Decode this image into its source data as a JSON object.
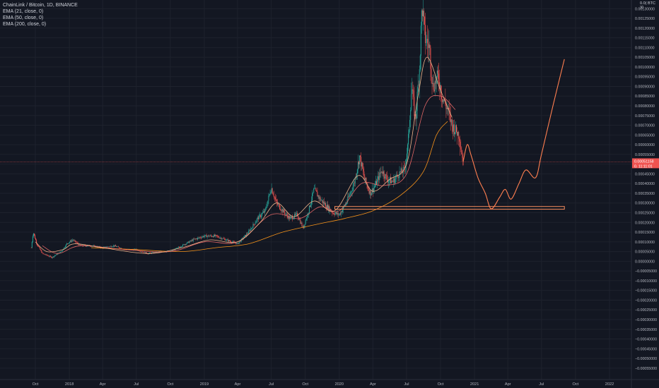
{
  "legend": {
    "title": "ChainLink / Bitcoin, 1D, BINANCE",
    "ema21": "EMA (21, close, 0)",
    "ema50": "EMA (50, close, 0)",
    "ema200": "EMA (200, close, 0)"
  },
  "price_scale": {
    "currency": "BTC",
    "top_truncated_label": "0.0( BTC )0",
    "last_price_label": "0.00051158",
    "countdown_label": "0.  11:11:01",
    "last_price_value": 0.00051158
  },
  "colors": {
    "background": "#131722",
    "grid": "#1e222d",
    "up_candle": "#26a69a",
    "down_candle": "#ef5350",
    "ema21": "#f0b38a",
    "ema50": "#e06666",
    "ema200": "#f7931a",
    "projection": "#ff7f50",
    "support_box": "#f58b5d",
    "price_tag": "#ef5350"
  },
  "chart_data": {
    "type": "candlestick",
    "symbol": "ChainLink / Bitcoin",
    "interval": "1D",
    "exchange": "BINANCE",
    "y_axis": {
      "range": [
        -0.000565,
        0.00133
      ],
      "step": 5e-05,
      "ticks": [
        "0.00130000",
        "0.00125000",
        "0.00120000",
        "0.00115000",
        "0.00110000",
        "0.00105000",
        "0.00100000",
        "0.00095000",
        "0.00090000",
        "0.00085000",
        "0.00080000",
        "0.00075000",
        "0.00070000",
        "0.00065000",
        "0.00060000",
        "0.00055000",
        "0.00050000",
        "0.00045000",
        "0.00040000",
        "0.00035000",
        "0.00030000",
        "0.00025000",
        "0.00020000",
        "0.00015000",
        "0.00010000",
        "0.00005000",
        "0.00000000",
        "−0.00005000",
        "−0.00010000",
        "−0.00015000",
        "−0.00020000",
        "−0.00025000",
        "−0.00030000",
        "−0.00035000",
        "−0.00040000",
        "−0.00045000",
        "−0.00050000",
        "−0.00055000"
      ]
    },
    "x_axis": {
      "ticks": [
        "Oct",
        "2018",
        "Apr",
        "Jul",
        "Oct",
        "2019",
        "Apr",
        "Jul",
        "Oct",
        "2020",
        "Apr",
        "Jul",
        "Oct",
        "2021",
        "Apr",
        "Jul",
        "Oct",
        "2022"
      ],
      "tick_dates": [
        "2017-10-01",
        "2018-01-01",
        "2018-04-01",
        "2018-07-01",
        "2018-10-01",
        "2019-01-01",
        "2019-04-01",
        "2019-07-01",
        "2019-10-01",
        "2020-01-01",
        "2020-04-01",
        "2020-07-01",
        "2020-10-01",
        "2021-01-01",
        "2021-04-01",
        "2021-07-01",
        "2021-10-01",
        "2022-01-01"
      ]
    },
    "price_path": [
      [
        "2017-09-20",
        7e-05
      ],
      [
        "2017-09-25",
        0.00015
      ],
      [
        "2017-10-05",
        9e-05
      ],
      [
        "2017-10-20",
        4e-05
      ],
      [
        "2017-11-15",
        2e-05
      ],
      [
        "2017-12-10",
        5e-05
      ],
      [
        "2017-12-25",
        9e-05
      ],
      [
        "2018-01-10",
        0.00011
      ],
      [
        "2018-02-01",
        8e-05
      ],
      [
        "2018-03-01",
        8e-05
      ],
      [
        "2018-04-01",
        7e-05
      ],
      [
        "2018-05-01",
        8e-05
      ],
      [
        "2018-06-01",
        6e-05
      ],
      [
        "2018-07-01",
        6e-05
      ],
      [
        "2018-08-01",
        4e-05
      ],
      [
        "2018-09-01",
        5e-05
      ],
      [
        "2018-10-01",
        5e-05
      ],
      [
        "2018-11-01",
        8e-05
      ],
      [
        "2018-12-01",
        0.00011
      ],
      [
        "2019-01-01",
        0.00013
      ],
      [
        "2019-02-01",
        0.00013
      ],
      [
        "2019-03-01",
        0.00011
      ],
      [
        "2019-04-01",
        9e-05
      ],
      [
        "2019-05-01",
        0.00015
      ],
      [
        "2019-05-25",
        0.00022
      ],
      [
        "2019-06-15",
        0.00026
      ],
      [
        "2019-07-01",
        0.00038
      ],
      [
        "2019-07-15",
        0.0003
      ],
      [
        "2019-08-01",
        0.00026
      ],
      [
        "2019-08-20",
        0.00022
      ],
      [
        "2019-09-10",
        0.00024
      ],
      [
        "2019-09-25",
        0.00017
      ],
      [
        "2019-10-10",
        0.00026
      ],
      [
        "2019-10-25",
        0.00037
      ],
      [
        "2019-11-10",
        0.00032
      ],
      [
        "2019-11-25",
        0.00029
      ],
      [
        "2019-12-15",
        0.00025
      ],
      [
        "2020-01-01",
        0.00024
      ],
      [
        "2020-01-20",
        0.0003
      ],
      [
        "2020-02-10",
        0.0004
      ],
      [
        "2020-02-25",
        0.00054
      ],
      [
        "2020-03-10",
        0.00042
      ],
      [
        "2020-03-25",
        0.00035
      ],
      [
        "2020-04-10",
        0.0004
      ],
      [
        "2020-04-25",
        0.00047
      ],
      [
        "2020-05-10",
        0.00042
      ],
      [
        "2020-05-25",
        0.00041
      ],
      [
        "2020-06-10",
        0.00045
      ],
      [
        "2020-06-25",
        0.00047
      ],
      [
        "2020-07-05",
        0.0006
      ],
      [
        "2020-07-15",
        0.0009
      ],
      [
        "2020-07-25",
        0.00072
      ],
      [
        "2020-08-05",
        0.001
      ],
      [
        "2020-08-12",
        0.00132
      ],
      [
        "2020-08-20",
        0.00115
      ],
      [
        "2020-09-01",
        0.0011
      ],
      [
        "2020-09-10",
        0.0009
      ],
      [
        "2020-09-25",
        0.00095
      ],
      [
        "2020-10-05",
        0.00085
      ],
      [
        "2020-10-20",
        0.00078
      ],
      [
        "2020-11-01",
        0.0007
      ],
      [
        "2020-11-20",
        0.00065
      ],
      [
        "2020-12-01",
        0.00051
      ]
    ],
    "ema21_path": [
      [
        "2017-10-01",
        0.0001
      ],
      [
        "2017-11-01",
        5e-05
      ],
      [
        "2017-12-15",
        6e-05
      ],
      [
        "2018-01-15",
        9e-05
      ],
      [
        "2018-04-01",
        7e-05
      ],
      [
        "2018-08-01",
        4e-05
      ],
      [
        "2018-11-01",
        7e-05
      ],
      [
        "2019-01-15",
        0.00011
      ],
      [
        "2019-04-01",
        0.0001
      ],
      [
        "2019-06-01",
        0.0002
      ],
      [
        "2019-07-15",
        0.0003
      ],
      [
        "2019-09-01",
        0.00023
      ],
      [
        "2019-10-25",
        0.00031
      ],
      [
        "2019-12-20",
        0.00026
      ],
      [
        "2020-02-20",
        0.00044
      ],
      [
        "2020-04-01",
        0.00036
      ],
      [
        "2020-05-15",
        0.00042
      ],
      [
        "2020-07-01",
        0.0005
      ],
      [
        "2020-08-01",
        0.00085
      ],
      [
        "2020-08-25",
        0.00105
      ],
      [
        "2020-10-01",
        0.00088
      ],
      [
        "2020-11-01",
        0.00074
      ]
    ],
    "ema50_path": [
      [
        "2017-10-20",
        8e-05
      ],
      [
        "2017-12-01",
        4e-05
      ],
      [
        "2018-02-01",
        8e-05
      ],
      [
        "2018-06-01",
        6e-05
      ],
      [
        "2018-10-01",
        5e-05
      ],
      [
        "2019-01-01",
        0.0001
      ],
      [
        "2019-04-01",
        0.0001
      ],
      [
        "2019-07-01",
        0.00024
      ],
      [
        "2019-09-15",
        0.00022
      ],
      [
        "2019-11-10",
        0.00028
      ],
      [
        "2020-01-01",
        0.00026
      ],
      [
        "2020-03-01",
        0.0004
      ],
      [
        "2020-05-01",
        0.00039
      ],
      [
        "2020-07-01",
        0.00045
      ],
      [
        "2020-08-20",
        0.0008
      ],
      [
        "2020-10-01",
        0.00085
      ],
      [
        "2020-11-10",
        0.00078
      ]
    ],
    "ema200_path": [
      [
        "2018-03-01",
        7e-05
      ],
      [
        "2018-07-01",
        6e-05
      ],
      [
        "2018-11-01",
        5e-05
      ],
      [
        "2019-02-01",
        7e-05
      ],
      [
        "2019-05-01",
        9e-05
      ],
      [
        "2019-08-01",
        0.00015
      ],
      [
        "2019-11-01",
        0.00019
      ],
      [
        "2020-01-15",
        0.00022
      ],
      [
        "2020-04-01",
        0.00026
      ],
      [
        "2020-06-15",
        0.00034
      ],
      [
        "2020-08-15",
        0.00046
      ],
      [
        "2020-09-20",
        0.00065
      ],
      [
        "2020-10-20",
        0.00072
      ]
    ],
    "projection_path": [
      [
        "2020-12-01",
        0.00051
      ],
      [
        "2020-12-12",
        0.0006
      ],
      [
        "2020-12-22",
        0.00055
      ],
      [
        "2021-01-10",
        0.00043
      ],
      [
        "2021-01-30",
        0.00035
      ],
      [
        "2021-02-15",
        0.00027
      ],
      [
        "2021-03-10",
        0.00033
      ],
      [
        "2021-03-25",
        0.00037
      ],
      [
        "2021-04-10",
        0.00032
      ],
      [
        "2021-05-01",
        0.0004
      ],
      [
        "2021-05-20",
        0.00047
      ],
      [
        "2021-06-15",
        0.00043
      ],
      [
        "2021-07-01",
        0.00055
      ],
      [
        "2021-08-01",
        0.0008
      ],
      [
        "2021-09-01",
        0.00104
      ]
    ],
    "support_zone": {
      "from": "2019-12-20",
      "to": "2021-09-01",
      "top": 0.000282,
      "bottom": 0.000268
    }
  }
}
